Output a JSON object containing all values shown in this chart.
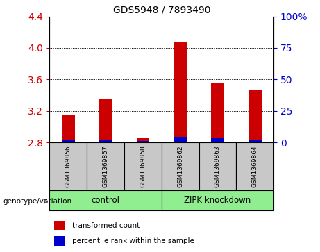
{
  "title": "GDS5948 / 7893490",
  "samples": [
    "GSM1369856",
    "GSM1369857",
    "GSM1369858",
    "GSM1369862",
    "GSM1369863",
    "GSM1369864"
  ],
  "red_values": [
    3.15,
    3.35,
    2.85,
    4.07,
    3.56,
    3.47
  ],
  "blue_values": [
    2.83,
    2.84,
    2.82,
    2.87,
    2.85,
    2.84
  ],
  "baseline": 2.8,
  "ylim": [
    2.8,
    4.4
  ],
  "yticks_left": [
    2.8,
    3.2,
    3.6,
    4.0,
    4.4
  ],
  "yticks_right": [
    0,
    25,
    50,
    75,
    100
  ],
  "right_ylim": [
    0,
    100
  ],
  "groups": [
    {
      "label": "control",
      "start": 0,
      "end": 3,
      "color": "#90ee90"
    },
    {
      "label": "ZIPK knockdown",
      "start": 3,
      "end": 6,
      "color": "#90ee90"
    }
  ],
  "group_label_prefix": "genotype/variation",
  "legend_red": "transformed count",
  "legend_blue": "percentile rank within the sample",
  "bar_width": 0.35,
  "red_color": "#cc0000",
  "blue_color": "#0000cc",
  "bg_color": "#c8c8c8",
  "plot_bg": "#ffffff",
  "grid_color": "#000000",
  "left_tick_color": "#cc0000",
  "right_tick_color": "#0000cc"
}
